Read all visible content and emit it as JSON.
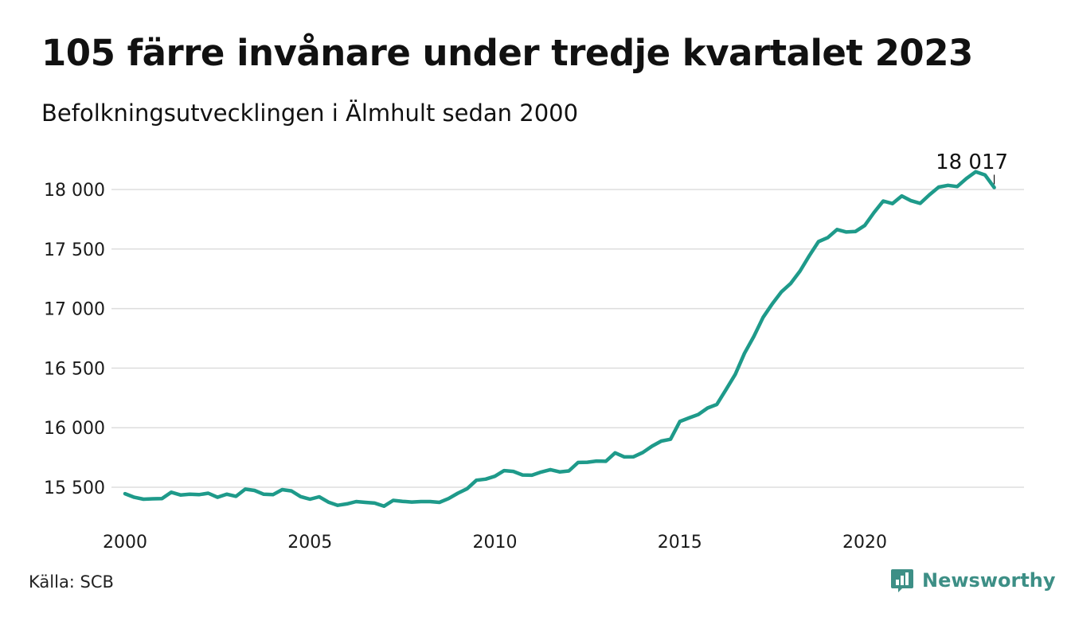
{
  "title": "105 färre invånare under tredje kvartalet 2023",
  "subtitle": "Befolkningsutvecklingen i Älmhult sedan 2000",
  "source": "Källa: SCB",
  "brand": {
    "name": "Newsworthy",
    "icon": "newsworthy-chart-logo-icon",
    "color": "#3d8f86"
  },
  "chart_data": {
    "type": "line",
    "title": "105 färre invånare under tredje kvartalet 2023",
    "subtitle": "Befolkningsutvecklingen i Älmhult sedan 2000",
    "xlabel": "",
    "ylabel": "",
    "xlim": [
      2000.0,
      2024.0
    ],
    "ylim": [
      15300,
      18170
    ],
    "x_ticks": [
      2000,
      2005,
      2010,
      2015,
      2020
    ],
    "x_tick_labels": [
      "2000",
      "2005",
      "2010",
      "2015",
      "2020"
    ],
    "y_ticks": [
      15500,
      16000,
      16500,
      17000,
      17500,
      18000
    ],
    "y_tick_labels": [
      "15 500",
      "16 000",
      "16 500",
      "17 000",
      "17 500",
      "18 000"
    ],
    "grid": "horizontal",
    "line_color": "#1e9a8a",
    "annotation": {
      "label": "18 017",
      "x": 2023.5,
      "y": 18017
    },
    "series": [
      {
        "points": [
          [
            2000.0,
            15446
          ],
          [
            2000.25,
            15416
          ],
          [
            2000.5,
            15400
          ],
          [
            2000.75,
            15403
          ],
          [
            2001.0,
            15405
          ],
          [
            2001.25,
            15458
          ],
          [
            2001.5,
            15435
          ],
          [
            2001.75,
            15442
          ],
          [
            2002.0,
            15438
          ],
          [
            2002.25,
            15450
          ],
          [
            2002.5,
            15416
          ],
          [
            2002.75,
            15442
          ],
          [
            2003.0,
            15424
          ],
          [
            2003.25,
            15484
          ],
          [
            2003.5,
            15473
          ],
          [
            2003.75,
            15441
          ],
          [
            2004.0,
            15438
          ],
          [
            2004.25,
            15480
          ],
          [
            2004.5,
            15469
          ],
          [
            2004.75,
            15421
          ],
          [
            2005.0,
            15400
          ],
          [
            2005.25,
            15420
          ],
          [
            2005.5,
            15375
          ],
          [
            2005.75,
            15348
          ],
          [
            2006.0,
            15360
          ],
          [
            2006.25,
            15380
          ],
          [
            2006.5,
            15373
          ],
          [
            2006.75,
            15367
          ],
          [
            2007.0,
            15341
          ],
          [
            2007.25,
            15390
          ],
          [
            2007.5,
            15382
          ],
          [
            2007.75,
            15376
          ],
          [
            2008.0,
            15380
          ],
          [
            2008.25,
            15380
          ],
          [
            2008.5,
            15373
          ],
          [
            2008.75,
            15405
          ],
          [
            2009.0,
            15450
          ],
          [
            2009.25,
            15488
          ],
          [
            2009.5,
            15559
          ],
          [
            2009.75,
            15568
          ],
          [
            2010.0,
            15592
          ],
          [
            2010.25,
            15640
          ],
          [
            2010.5,
            15633
          ],
          [
            2010.75,
            15603
          ],
          [
            2011.0,
            15601
          ],
          [
            2011.25,
            15628
          ],
          [
            2011.5,
            15648
          ],
          [
            2011.75,
            15629
          ],
          [
            2012.0,
            15637
          ],
          [
            2012.25,
            15708
          ],
          [
            2012.5,
            15710
          ],
          [
            2012.75,
            15720
          ],
          [
            2013.0,
            15718
          ],
          [
            2013.25,
            15789
          ],
          [
            2013.5,
            15755
          ],
          [
            2013.75,
            15756
          ],
          [
            2014.0,
            15792
          ],
          [
            2014.25,
            15845
          ],
          [
            2014.5,
            15888
          ],
          [
            2014.75,
            15903
          ],
          [
            2015.0,
            16052
          ],
          [
            2015.25,
            16082
          ],
          [
            2015.5,
            16111
          ],
          [
            2015.75,
            16165
          ],
          [
            2016.0,
            16195
          ],
          [
            2016.25,
            16320
          ],
          [
            2016.5,
            16448
          ],
          [
            2016.75,
            16625
          ],
          [
            2017.0,
            16766
          ],
          [
            2017.25,
            16926
          ],
          [
            2017.5,
            17040
          ],
          [
            2017.75,
            17142
          ],
          [
            2018.0,
            17212
          ],
          [
            2018.25,
            17315
          ],
          [
            2018.5,
            17443
          ],
          [
            2018.75,
            17562
          ],
          [
            2019.0,
            17596
          ],
          [
            2019.25,
            17664
          ],
          [
            2019.5,
            17643
          ],
          [
            2019.75,
            17648
          ],
          [
            2020.0,
            17698
          ],
          [
            2020.25,
            17806
          ],
          [
            2020.5,
            17903
          ],
          [
            2020.75,
            17882
          ],
          [
            2021.0,
            17946
          ],
          [
            2021.25,
            17906
          ],
          [
            2021.5,
            17884
          ],
          [
            2021.75,
            17956
          ],
          [
            2022.0,
            18020
          ],
          [
            2022.25,
            18035
          ],
          [
            2022.5,
            18025
          ],
          [
            2022.75,
            18092
          ],
          [
            2023.0,
            18149
          ],
          [
            2023.25,
            18122
          ],
          [
            2023.5,
            18017
          ]
        ]
      }
    ]
  }
}
